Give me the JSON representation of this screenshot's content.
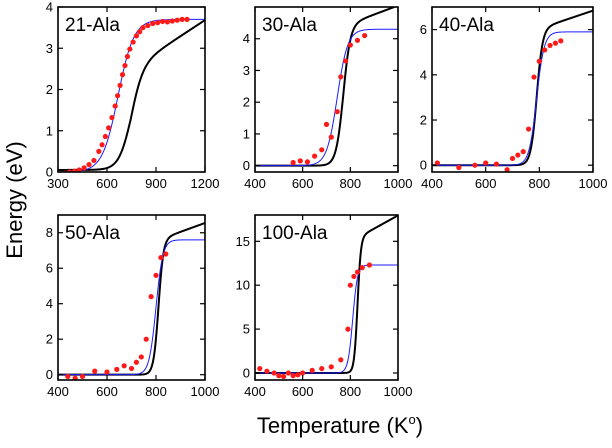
{
  "figure": {
    "ylabel": "Energy (eV)",
    "xlabel_main": "Temperature (K",
    "xlabel_sup": "o",
    "xlabel_end": ")"
  },
  "colors": {
    "black_curve": "#000000",
    "blue_curve": "#1a1aff",
    "points": "#ff1a1a"
  },
  "chart_data": [
    {
      "type": "line",
      "title": "21-Ala",
      "xlim": [
        300,
        1200
      ],
      "ylim": [
        0,
        4
      ],
      "xticks": [
        300,
        600,
        900,
        1200
      ],
      "xtick_labels": [
        "300",
        "600",
        "900",
        "1200"
      ],
      "yticks": [
        0,
        1,
        2,
        3,
        4
      ],
      "ytick_labels": [
        "0",
        "1",
        "2",
        "3",
        "4"
      ],
      "series": [
        {
          "name": "black",
          "model": {
            "e0": 0.05,
            "step": 2.45,
            "tc": 745,
            "w": 37,
            "slope": 0.0026
          }
        },
        {
          "name": "blue",
          "model": {
            "e0": 0.0,
            "step": 3.7,
            "tc": 668,
            "w": 48,
            "slope": 0.0
          }
        },
        {
          "name": "data",
          "x": [
            310,
            340,
            370,
            400,
            430,
            460,
            490,
            520,
            550,
            570,
            590,
            610,
            630,
            650,
            665,
            680,
            695,
            710,
            725,
            740,
            760,
            780,
            800,
            820,
            850,
            880,
            910,
            940,
            970,
            1000,
            1030,
            1060,
            1090
          ],
          "y": [
            -0.05,
            -0.03,
            0.0,
            0.02,
            0.05,
            0.1,
            0.18,
            0.28,
            0.5,
            0.66,
            0.86,
            1.07,
            1.32,
            1.6,
            1.85,
            2.1,
            2.36,
            2.58,
            2.8,
            2.98,
            3.15,
            3.3,
            3.4,
            3.5,
            3.55,
            3.6,
            3.62,
            3.65,
            3.64,
            3.66,
            3.68,
            3.7,
            3.7
          ]
        }
      ]
    },
    {
      "type": "line",
      "title": "30-Ala",
      "xlim": [
        400,
        1000
      ],
      "ylim": [
        -0.2,
        5
      ],
      "xticks": [
        400,
        600,
        800,
        1000
      ],
      "xtick_labels": [
        "400",
        "600",
        "800",
        "1000"
      ],
      "yticks": [
        0,
        1,
        2,
        3,
        4
      ],
      "ytick_labels": [
        "0",
        "1",
        "2",
        "3",
        "4"
      ],
      "series": [
        {
          "name": "black",
          "model": {
            "e0": 0.0,
            "step": 4.4,
            "tc": 770,
            "w": 15,
            "slope": 0.0028
          }
        },
        {
          "name": "blue",
          "model": {
            "e0": 0.0,
            "step": 4.3,
            "tc": 745,
            "w": 22,
            "slope": 0.0
          }
        },
        {
          "name": "data",
          "x": [
            560,
            590,
            620,
            650,
            680,
            700,
            720,
            745,
            760,
            780,
            800,
            830,
            860
          ],
          "y": [
            0.1,
            0.15,
            0.12,
            0.3,
            0.5,
            1.3,
            0.9,
            1.7,
            2.8,
            3.3,
            3.8,
            3.95,
            4.1
          ]
        }
      ]
    },
    {
      "type": "line",
      "title": "40-Ala",
      "xlim": [
        400,
        1000
      ],
      "ylim": [
        -0.3,
        7
      ],
      "xticks": [
        400,
        600,
        800,
        1000
      ],
      "xtick_labels": [
        "400",
        "600",
        "800",
        "1000"
      ],
      "yticks": [
        0,
        2,
        4,
        6
      ],
      "ytick_labels": [
        "0",
        "2",
        "4",
        "6"
      ],
      "series": [
        {
          "name": "black",
          "model": {
            "e0": 0.0,
            "step": 6.0,
            "tc": 790,
            "w": 11,
            "slope": 0.004
          }
        },
        {
          "name": "blue",
          "model": {
            "e0": 0.0,
            "step": 5.9,
            "tc": 790,
            "w": 14,
            "slope": 0.0
          }
        },
        {
          "name": "data",
          "x": [
            420,
            500,
            560,
            600,
            640,
            680,
            700,
            720,
            740,
            760,
            780,
            800,
            820,
            840,
            860,
            880
          ],
          "y": [
            0.1,
            -0.1,
            0.0,
            0.1,
            0.05,
            -0.2,
            0.3,
            0.45,
            0.6,
            1.6,
            3.9,
            4.6,
            5.1,
            5.3,
            5.4,
            5.5
          ]
        }
      ]
    },
    {
      "type": "line",
      "title": "50-Ala",
      "xlim": [
        400,
        1000
      ],
      "ylim": [
        -0.3,
        9
      ],
      "xticks": [
        400,
        600,
        800,
        1000
      ],
      "xtick_labels": [
        "400",
        "600",
        "800",
        "1000"
      ],
      "yticks": [
        0,
        2,
        4,
        6,
        8
      ],
      "ytick_labels": [
        "0",
        "2",
        "4",
        "6",
        "8"
      ],
      "series": [
        {
          "name": "black",
          "model": {
            "e0": 0.0,
            "step": 7.6,
            "tc": 810,
            "w": 10,
            "slope": 0.005
          }
        },
        {
          "name": "blue",
          "model": {
            "e0": 0.0,
            "step": 7.6,
            "tc": 800,
            "w": 14,
            "slope": 0.0
          }
        },
        {
          "name": "data",
          "x": [
            440,
            470,
            500,
            550,
            600,
            640,
            670,
            700,
            720,
            740,
            760,
            780,
            800,
            820,
            840
          ],
          "y": [
            -0.1,
            -0.2,
            -0.1,
            0.2,
            0.15,
            0.3,
            0.5,
            0.35,
            0.7,
            1.0,
            2.0,
            4.4,
            5.6,
            6.6,
            6.8
          ]
        }
      ]
    },
    {
      "type": "line",
      "title": "100-Ala",
      "xlim": [
        400,
        1000
      ],
      "ylim": [
        -0.8,
        18
      ],
      "xticks": [
        400,
        600,
        800,
        1000
      ],
      "xtick_labels": [
        "400",
        "600",
        "800",
        "1000"
      ],
      "yticks": [
        0,
        5,
        10,
        15
      ],
      "ytick_labels": [
        "0",
        "5",
        "10",
        "15"
      ],
      "series": [
        {
          "name": "black",
          "model": {
            "e0": 0.0,
            "step": 15.4,
            "tc": 830,
            "w": 7,
            "slope": 0.015
          }
        },
        {
          "name": "blue",
          "model": {
            "e0": 0.0,
            "step": 12.3,
            "tc": 810,
            "w": 10,
            "slope": 0.0
          }
        },
        {
          "name": "data",
          "x": [
            420,
            450,
            480,
            500,
            520,
            540,
            560,
            580,
            600,
            640,
            680,
            720,
            760,
            790,
            800,
            815,
            830,
            850,
            880
          ],
          "y": [
            0.5,
            0.2,
            0.0,
            -0.3,
            -0.4,
            0.0,
            -0.3,
            -0.2,
            0.0,
            0.3,
            0.5,
            0.7,
            1.5,
            5.0,
            10.0,
            11.0,
            11.5,
            12.0,
            12.3
          ]
        }
      ]
    }
  ]
}
